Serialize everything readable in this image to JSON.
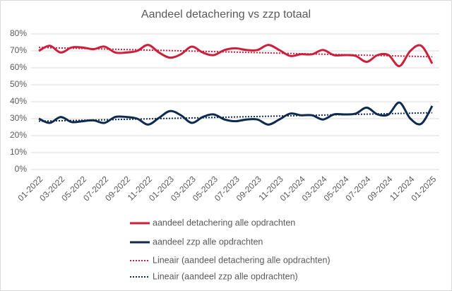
{
  "chart_data": {
    "type": "line",
    "title": "Aandeel detachering vs zzp totaal",
    "categories": [
      "01-2022",
      null,
      "03-2022",
      null,
      "05-2022",
      null,
      "07-2022",
      null,
      "09-2022",
      null,
      "11-2022",
      null,
      "01-2023",
      null,
      "03-2023",
      null,
      "05-2023",
      null,
      "07-2023",
      null,
      "09-2023",
      null,
      "11-2023",
      null,
      "01-2024",
      null,
      "03-2024",
      null,
      "05-2024",
      null,
      "07-2024",
      null,
      "09-2024",
      null,
      "11-2024",
      null,
      "01-2025"
    ],
    "series": [
      {
        "name": "aandeel detachering alle opdrachten",
        "color": "#cc1f3c",
        "values": [
          70,
          73,
          69,
          72,
          72,
          71,
          72.5,
          69,
          69,
          70,
          73.5,
          69,
          66,
          68,
          72.5,
          69,
          67.5,
          70.5,
          71.5,
          70.5,
          70.5,
          73.5,
          70.5,
          67,
          68,
          68,
          70.5,
          67.5,
          67.5,
          67,
          63.5,
          67.5,
          67.5,
          61,
          70,
          73,
          62.5
        ],
        "trendline": {
          "name": "Lineair (aandeel detachering alle opdrachten)",
          "values": [
            72,
            66.5
          ]
        }
      },
      {
        "name": "aandeel zzp alle opdrachten",
        "color": "#0e2a4f",
        "values": [
          30,
          27.5,
          31,
          28,
          28.5,
          29,
          27.5,
          31,
          31,
          30,
          26.5,
          30.5,
          34.5,
          32,
          27.5,
          31,
          32.5,
          29.5,
          28.5,
          29.5,
          29.5,
          26.5,
          29.5,
          33,
          32,
          32,
          29.5,
          32.5,
          32.5,
          33,
          36.5,
          32.5,
          32.5,
          39.5,
          30,
          27,
          37.5
        ],
        "trendline": {
          "name": "Lineair (aandeel zzp alle opdrachten)",
          "values": [
            28.5,
            33.5
          ]
        }
      }
    ],
    "ylim": [
      0,
      80
    ],
    "yticks": [
      {
        "value": 0,
        "label": "0%"
      },
      {
        "value": 10,
        "label": "10%"
      },
      {
        "value": 20,
        "label": "20%"
      },
      {
        "value": 30,
        "label": "30%"
      },
      {
        "value": 40,
        "label": "40%"
      },
      {
        "value": 50,
        "label": "50%"
      },
      {
        "value": 60,
        "label": "60%"
      },
      {
        "value": 70,
        "label": "70%"
      },
      {
        "value": 80,
        "label": "80%"
      }
    ],
    "grid": true
  }
}
